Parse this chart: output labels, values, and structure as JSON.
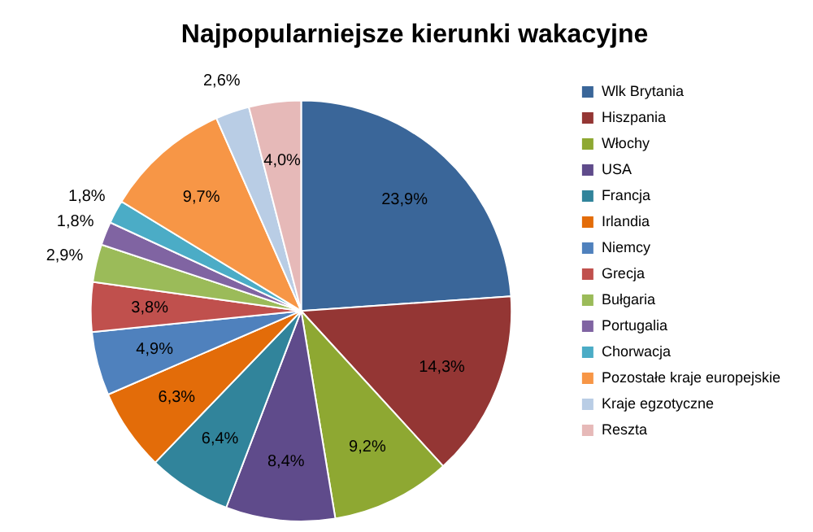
{
  "chart_data": {
    "type": "pie",
    "title": "Najpopularniejsze kierunki wakacyjne",
    "categories": [
      "Wlk Brytania",
      "Hiszpania",
      "Włochy",
      "USA",
      "Francja",
      "Irlandia",
      "Niemcy",
      "Grecja",
      "Bułgaria",
      "Portugalia",
      "Chorwacja",
      "Pozostałe kraje europejskie",
      "Kraje egzotyczne",
      "Reszta"
    ],
    "values": [
      23.9,
      14.3,
      9.2,
      8.4,
      6.4,
      6.3,
      4.9,
      3.8,
      2.9,
      1.8,
      1.8,
      9.7,
      2.6,
      4.0
    ],
    "value_labels": [
      "23,9%",
      "14,3%",
      "9,2%",
      "8,4%",
      "6,4%",
      "6,3%",
      "4,9%",
      "3,8%",
      "2,9%",
      "1,8%",
      "1,8%",
      "9,7%",
      "2,6%",
      "4,0%"
    ],
    "colors": [
      "#3a6699",
      "#943634",
      "#8ea832",
      "#5f4b8b",
      "#31849b",
      "#e36c09",
      "#4f81bd",
      "#c0504d",
      "#9bbb59",
      "#8064a2",
      "#4bacc6",
      "#f79646",
      "#b9cde5",
      "#e6b9b8"
    ],
    "legend": "right"
  }
}
